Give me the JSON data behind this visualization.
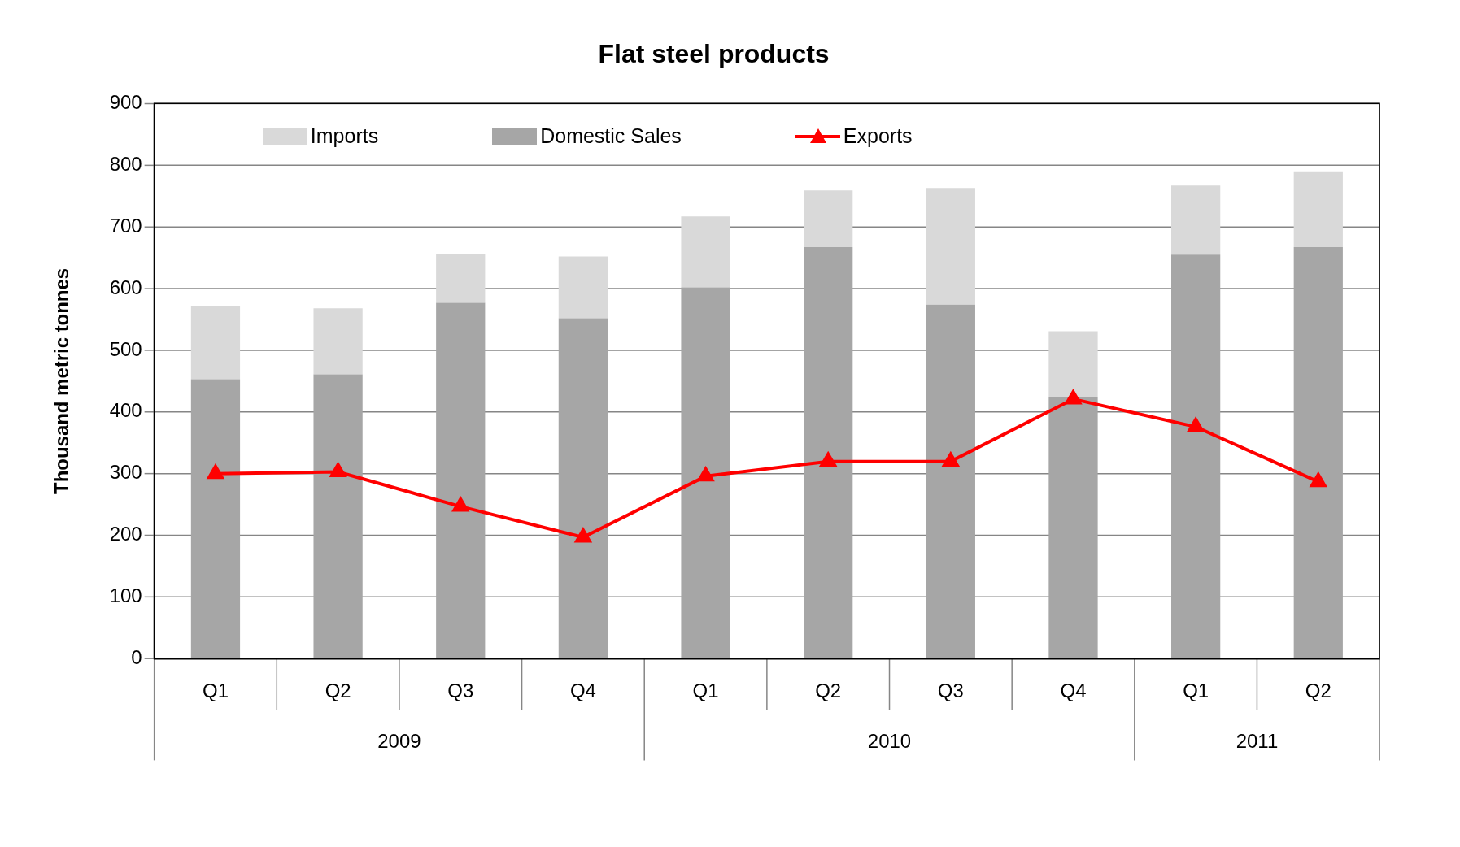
{
  "chart_data": {
    "type": "bar",
    "title": "Flat steel products",
    "ylabel": "Thousand metric tonnes",
    "categories": [
      "Q1",
      "Q2",
      "Q3",
      "Q4",
      "Q1",
      "Q2",
      "Q3",
      "Q4",
      "Q1",
      "Q2"
    ],
    "annotations": [
      "2009",
      "2010",
      "2011"
    ],
    "stacked": true,
    "ylim": [
      0,
      900
    ],
    "yticks": [
      0,
      100,
      200,
      300,
      400,
      500,
      600,
      700,
      800,
      900
    ],
    "grid": "y",
    "legend": "top left",
    "series": [
      {
        "name": "Domestic Sales",
        "color": "#a6a6a6",
        "values": [
          453,
          461,
          577,
          552,
          602,
          667,
          574,
          425,
          655,
          667
        ]
      },
      {
        "name": "Imports",
        "color": "#d9d9d9",
        "values": [
          118,
          107,
          79,
          100,
          115,
          92,
          189,
          106,
          112,
          123
        ]
      },
      {
        "name": "Exports",
        "type": "line",
        "color": "#ff0000",
        "marker": "triangle",
        "values": [
          300,
          303,
          247,
          197,
          296,
          320,
          320,
          421,
          376,
          287
        ]
      }
    ]
  }
}
